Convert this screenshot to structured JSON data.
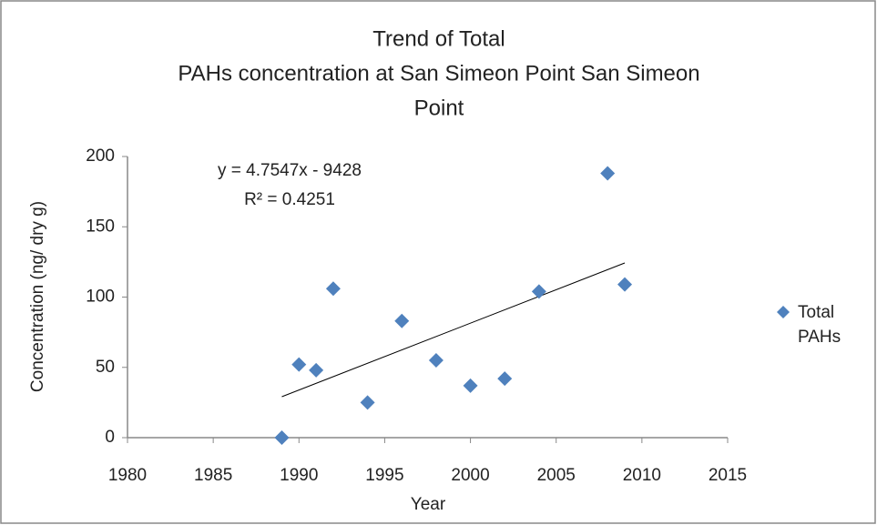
{
  "chart_data": {
    "type": "scatter",
    "title": [
      "Trend of Total",
      "PAHs concentration at San Simeon Point  San Simeon",
      "Point"
    ],
    "x_label": "Year",
    "y_label": "Concentration (ng/ dry g)",
    "series": [
      {
        "name": "Total PAHs",
        "color": "#4f81bd",
        "x": [
          1989,
          1990,
          1991,
          1992,
          1994,
          1996,
          1998,
          2000,
          2002,
          2004,
          2008,
          2009
        ],
        "values": [
          0,
          52,
          48,
          106,
          25,
          83,
          55,
          37,
          42,
          104,
          188,
          109
        ]
      }
    ],
    "trendline": {
      "equation": "y = 4.7547x - 9428",
      "r_squared": "R² = 0.4251"
    },
    "xlim": [
      1980,
      2015
    ],
    "xticks": [
      1980,
      1985,
      1990,
      1995,
      2000,
      2005,
      2010,
      2015
    ],
    "ylim": [
      0,
      200
    ],
    "yticks": [
      0,
      50,
      100,
      150,
      200
    ],
    "grid": false,
    "legend": "right"
  }
}
